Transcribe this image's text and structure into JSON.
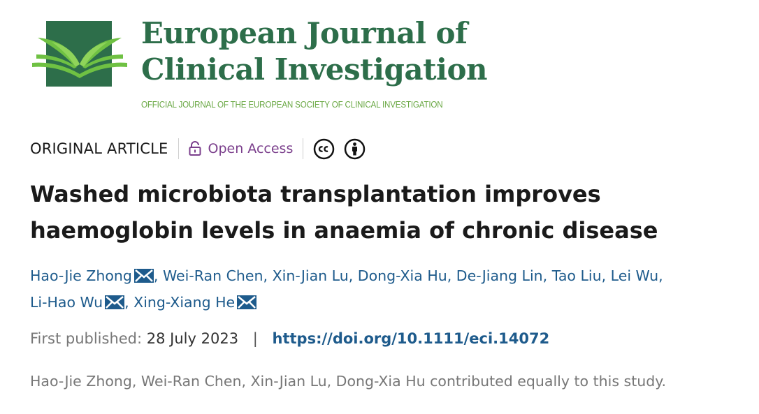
{
  "journal": {
    "title_line1": "European Journal of",
    "title_line2": "Clinical Investigation",
    "subtitle": "OFFICIAL JOURNAL OF THE EUROPEAN SOCIETY OF CLINICAL INVESTIGATION",
    "logo_icon": "open-book-logo",
    "brand_color": "#2d6e4a",
    "accent_color": "#6aa844"
  },
  "meta": {
    "article_type": "ORIGINAL ARTICLE",
    "open_access": "Open Access",
    "license_icons": [
      "cc-icon",
      "attribution-icon"
    ],
    "open_access_color": "#7b3f8c"
  },
  "article": {
    "title_line1": "Washed microbiota transplantation improves",
    "title_line2": "haemoglobin levels in anaemia of chronic disease"
  },
  "authors": [
    {
      "name": "Hao-Jie Zhong",
      "email": true
    },
    {
      "name": "Wei-Ran Chen",
      "email": false
    },
    {
      "name": "Xin-Jian Lu",
      "email": false
    },
    {
      "name": "Dong-Xia Hu",
      "email": false
    },
    {
      "name": "De-Jiang Lin",
      "email": false
    },
    {
      "name": "Tao Liu",
      "email": false
    },
    {
      "name": "Lei Wu",
      "email": false
    },
    {
      "name": "Li-Hao Wu",
      "email": true
    },
    {
      "name": "Xing-Xiang He",
      "email": true
    }
  ],
  "publication": {
    "label": "First published:",
    "date": "28 July 2023",
    "separator": "|",
    "doi": "https://doi.org/10.1111/eci.14072"
  },
  "note": "Hao-Jie Zhong, Wei-Ran Chen, Xin-Jian Lu, Dong-Xia Hu contributed equally to this study.",
  "link_color": "#1e5b8c"
}
